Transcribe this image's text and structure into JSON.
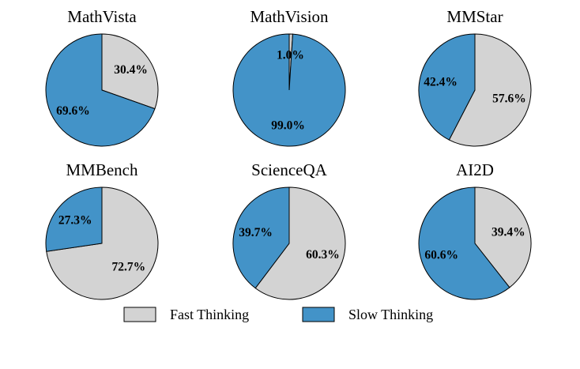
{
  "chart_data": {
    "type": "pie",
    "series_names": [
      "Fast Thinking",
      "Slow Thinking"
    ],
    "colors": {
      "Fast Thinking": "#d3d3d3",
      "Slow Thinking": "#4393c8"
    },
    "legend": {
      "placement": "bottom-center",
      "items": [
        "Fast Thinking",
        "Slow Thinking"
      ]
    },
    "charts": [
      {
        "title": "MathVista",
        "slices": [
          {
            "name": "Fast Thinking",
            "value": 30.4,
            "label": "30.4%"
          },
          {
            "name": "Slow Thinking",
            "value": 69.6,
            "label": "69.6%"
          }
        ]
      },
      {
        "title": "MathVision",
        "slices": [
          {
            "name": "Fast Thinking",
            "value": 1.0,
            "label": "1.0%"
          },
          {
            "name": "Slow Thinking",
            "value": 99.0,
            "label": "99.0%"
          }
        ]
      },
      {
        "title": "MMStar",
        "slices": [
          {
            "name": "Fast Thinking",
            "value": 57.6,
            "label": "57.6%"
          },
          {
            "name": "Slow Thinking",
            "value": 42.4,
            "label": "42.4%"
          }
        ]
      },
      {
        "title": "MMBench",
        "slices": [
          {
            "name": "Fast Thinking",
            "value": 72.7,
            "label": "72.7%"
          },
          {
            "name": "Slow Thinking",
            "value": 27.3,
            "label": "27.3%"
          }
        ]
      },
      {
        "title": "ScienceQA",
        "slices": [
          {
            "name": "Fast Thinking",
            "value": 60.3,
            "label": "60.3%"
          },
          {
            "name": "Slow Thinking",
            "value": 39.7,
            "label": "39.7%"
          }
        ]
      },
      {
        "title": "AI2D",
        "slices": [
          {
            "name": "Fast Thinking",
            "value": 39.4,
            "label": "39.4%"
          },
          {
            "name": "Slow Thinking",
            "value": 60.6,
            "label": "60.6%"
          }
        ]
      }
    ]
  }
}
